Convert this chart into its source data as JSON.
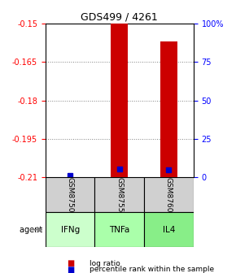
{
  "title": "GDS499 / 4261",
  "samples": [
    "GSM8750",
    "GSM8755",
    "GSM8760"
  ],
  "agents": [
    "IFNg",
    "TNFa",
    "IL4"
  ],
  "log_ratio_values": [
    -0.2098,
    -0.15,
    -0.157
  ],
  "percentile_values": [
    1.0,
    5.5,
    5.0
  ],
  "ylim_left": [
    -0.21,
    -0.15
  ],
  "ylim_right": [
    0,
    100
  ],
  "yticks_left": [
    -0.21,
    -0.195,
    -0.18,
    -0.165,
    -0.15
  ],
  "yticks_right": [
    0,
    25,
    50,
    75,
    100
  ],
  "ytick_labels_left": [
    "-0.21",
    "-0.195",
    "-0.18",
    "-0.165",
    "-0.15"
  ],
  "ytick_labels_right": [
    "0",
    "25",
    "50",
    "75",
    "100%"
  ],
  "bar_color": "#cc0000",
  "dot_color": "#0000cc",
  "agent_colors": [
    "#aaffaa",
    "#aaffaa",
    "#aaffaa"
  ],
  "sample_bg": "#d0d0d0",
  "agent_bg_light": "#ccffcc",
  "agent_bg_green": "#88ee88",
  "legend_log_ratio": "log ratio",
  "legend_percentile": "percentile rank within the sample",
  "bar_width": 0.35,
  "baseline": -0.21
}
